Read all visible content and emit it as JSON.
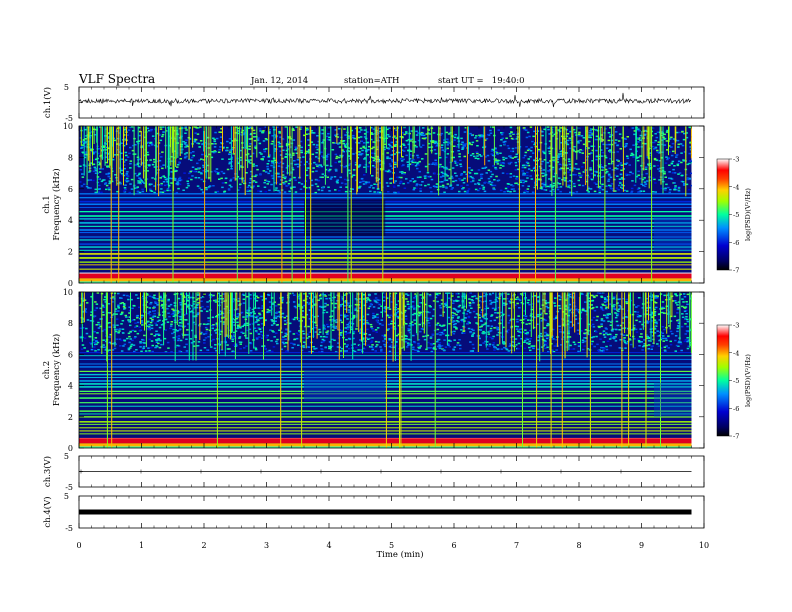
{
  "header": {
    "title": "VLF Spectra",
    "date": "Jan. 12, 2014",
    "station": "station=ATH",
    "start_ut": "start UT =   19:40:0"
  },
  "chart_data": [
    {
      "type": "line",
      "name": "ch1-waveform",
      "ylabel": "ch.1(V)",
      "ylim": [
        -5,
        5
      ],
      "yticks": [
        "5",
        "-5"
      ],
      "xlim": [
        0,
        10
      ],
      "trace_x_end_min": 9.8,
      "baseline_level_v": 0.5
    },
    {
      "type": "heatmap",
      "name": "ch1-spectrogram",
      "ylabel_channel": "ch.1",
      "ylabel": "Frequency (kHz)",
      "ylim": [
        0,
        10
      ],
      "yticks": [
        "0",
        "2",
        "4",
        "6",
        "8",
        "10"
      ],
      "xlim": [
        0,
        10
      ],
      "colorbar": {
        "label": "log(PSD)(V²/Hz)",
        "range": [
          -7,
          -3
        ],
        "ticks": [
          "-3",
          "-4",
          "-5",
          "-6",
          "-7"
        ]
      }
    },
    {
      "type": "heatmap",
      "name": "ch2-spectrogram",
      "ylabel_channel": "ch.2",
      "ylabel": "Frequency (kHz)",
      "ylim": [
        0,
        10
      ],
      "yticks": [
        "0",
        "2",
        "4",
        "6",
        "8",
        "10"
      ],
      "xlim": [
        0,
        10
      ],
      "colorbar": {
        "label": "log(PSD)(V²/Hz)",
        "range": [
          -7,
          -3
        ],
        "ticks": [
          "-3",
          "-4",
          "-5",
          "-6",
          "-7"
        ]
      }
    },
    {
      "type": "line",
      "name": "ch3-waveform",
      "ylabel": "ch.3(V)",
      "ylim": [
        -5,
        5
      ],
      "yticks": [
        "5",
        "-5"
      ],
      "xlim": [
        0,
        10
      ],
      "baseline_level_v": 0
    },
    {
      "type": "line",
      "name": "ch4-waveform",
      "ylabel": "ch.4(V)",
      "ylim": [
        -5,
        5
      ],
      "yticks": [
        "5",
        "-5"
      ],
      "xlim": [
        0,
        10
      ],
      "baseline_level_v": 0
    }
  ],
  "xaxis": {
    "label": "Time (min)",
    "range": [
      0,
      10
    ],
    "ticks": [
      "0",
      "1",
      "2",
      "3",
      "4",
      "5",
      "6",
      "7",
      "8",
      "9",
      "10"
    ]
  },
  "colors": {
    "spectrogram_background": "#060c7a",
    "colormap": [
      "#000000",
      "#0000a0",
      "#0033ff",
      "#00c0ff",
      "#00ff80",
      "#c0ff00",
      "#ff8000",
      "#ff0000",
      "#ffffff"
    ]
  }
}
